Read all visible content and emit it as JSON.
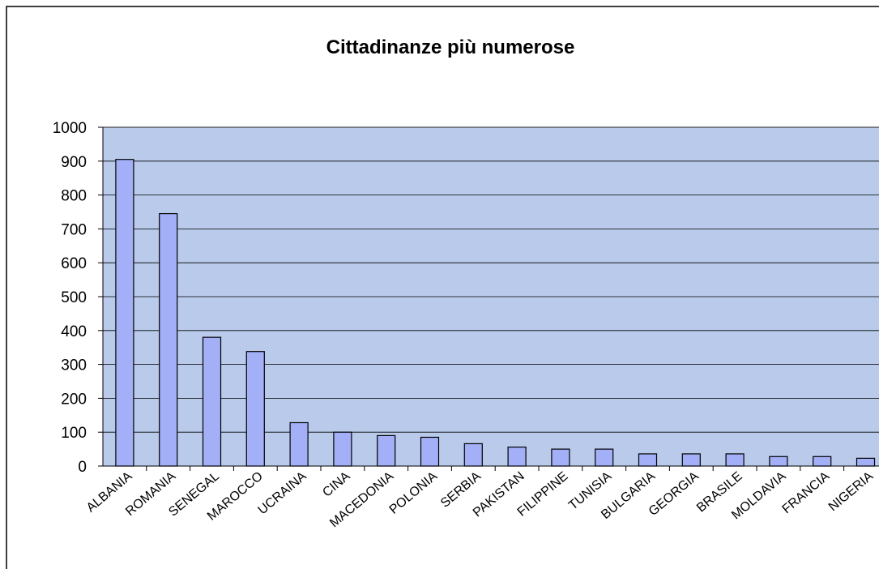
{
  "chart_data": {
    "type": "bar",
    "title": "Cittadinanze più numerose",
    "categories": [
      "ALBANIA",
      "ROMANIA",
      "SENEGAL",
      "MAROCCO",
      "UCRAINA",
      "CINA",
      "MACEDONIA",
      "POLONIA",
      "SERBIA",
      "PAKISTAN",
      "FILIPPINE",
      "TUNISIA",
      "BULGARIA",
      "GEORGIA",
      "BRASILE",
      "MOLDAVIA",
      "FRANCIA",
      "NIGERIA"
    ],
    "values": [
      905,
      745,
      380,
      338,
      128,
      100,
      90,
      85,
      66,
      56,
      50,
      50,
      36,
      36,
      36,
      28,
      28,
      23
    ],
    "color": "#a3b0f7",
    "ylim": [
      0,
      1000
    ],
    "yticks": [
      0,
      100,
      200,
      300,
      400,
      500,
      600,
      700,
      800,
      900,
      1000
    ],
    "grid": true
  }
}
